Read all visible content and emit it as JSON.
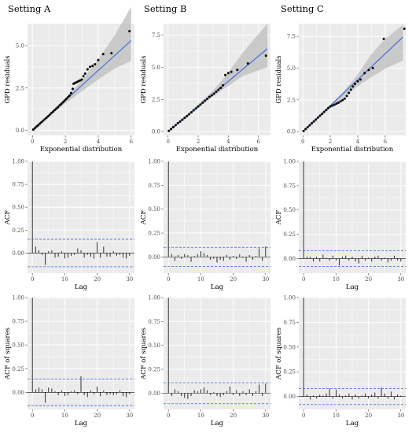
{
  "colors": {
    "panel_bg": "#EBEBEB",
    "grid": "#FFFFFF",
    "fit_line": "#3366DD",
    "band": "#BEBEBE",
    "bounds": "#3366DD",
    "points": "#000000",
    "bars": "#000000"
  },
  "chart_data": [
    {
      "type": "scatter",
      "id": "qq-A",
      "title": "Setting A",
      "xlabel": "Exponential distribution",
      "ylabel": "GPD residuals",
      "xlim": [
        -0.3,
        6.2
      ],
      "ylim": [
        -0.3,
        6.3
      ],
      "xticks": [
        0,
        2,
        4,
        6
      ],
      "yticks": [
        0.0,
        2.5,
        5.0
      ],
      "ytick_labels": [
        "0.0",
        "2.5",
        "5.0"
      ],
      "fit_line": [
        [
          0,
          0
        ],
        [
          6,
          5.3
        ]
      ],
      "band_upper": [
        [
          0,
          0.05
        ],
        [
          1,
          0.95
        ],
        [
          2,
          1.9
        ],
        [
          3,
          2.95
        ],
        [
          4,
          4.2
        ],
        [
          5,
          5.6
        ],
        [
          6,
          7.3
        ]
      ],
      "band_lower": [
        [
          0,
          -0.05
        ],
        [
          1,
          0.8
        ],
        [
          2,
          1.6
        ],
        [
          3,
          2.3
        ],
        [
          4,
          3.0
        ],
        [
          5,
          3.65
        ],
        [
          6,
          4.1
        ]
      ],
      "points": [
        [
          0.05,
          0.04
        ],
        [
          0.15,
          0.13
        ],
        [
          0.25,
          0.22
        ],
        [
          0.35,
          0.3
        ],
        [
          0.45,
          0.4
        ],
        [
          0.55,
          0.48
        ],
        [
          0.65,
          0.57
        ],
        [
          0.75,
          0.66
        ],
        [
          0.85,
          0.74
        ],
        [
          0.95,
          0.83
        ],
        [
          1.05,
          0.92
        ],
        [
          1.15,
          1.02
        ],
        [
          1.25,
          1.1
        ],
        [
          1.35,
          1.2
        ],
        [
          1.45,
          1.28
        ],
        [
          1.55,
          1.37
        ],
        [
          1.65,
          1.47
        ],
        [
          1.75,
          1.56
        ],
        [
          1.85,
          1.65
        ],
        [
          1.95,
          1.75
        ],
        [
          2.05,
          1.85
        ],
        [
          2.15,
          1.95
        ],
        [
          2.25,
          2.05
        ],
        [
          2.35,
          2.2
        ],
        [
          2.45,
          2.45
        ],
        [
          2.5,
          2.75
        ],
        [
          2.6,
          2.8
        ],
        [
          2.7,
          2.85
        ],
        [
          2.8,
          2.9
        ],
        [
          2.9,
          2.95
        ],
        [
          3.0,
          3.0
        ],
        [
          3.1,
          3.2
        ],
        [
          3.2,
          3.35
        ],
        [
          3.35,
          3.6
        ],
        [
          3.5,
          3.75
        ],
        [
          3.65,
          3.8
        ],
        [
          3.8,
          3.9
        ],
        [
          4.0,
          4.15
        ],
        [
          4.3,
          4.5
        ],
        [
          4.8,
          4.55
        ],
        [
          5.9,
          5.85
        ]
      ]
    },
    {
      "type": "scatter",
      "id": "qq-B",
      "title": "Setting B",
      "xlabel": "Exponential distribution",
      "ylabel": "GPD residuals",
      "xlim": [
        -0.3,
        6.8
      ],
      "ylim": [
        -0.3,
        8.4
      ],
      "xticks": [
        0,
        2,
        4,
        6
      ],
      "yticks": [
        0.0,
        2.5,
        5.0,
        7.5
      ],
      "ytick_labels": [
        "0.0",
        "2.5",
        "5.0",
        "7.5"
      ],
      "fit_line": [
        [
          0,
          0
        ],
        [
          6.6,
          6.45
        ]
      ],
      "band_upper": [
        [
          0,
          0.05
        ],
        [
          1,
          1.05
        ],
        [
          2,
          2.1
        ],
        [
          3,
          3.2
        ],
        [
          4,
          4.6
        ],
        [
          5,
          6.2
        ],
        [
          6.6,
          8.4
        ]
      ],
      "band_lower": [
        [
          0,
          -0.05
        ],
        [
          1,
          0.9
        ],
        [
          2,
          1.85
        ],
        [
          3,
          2.75
        ],
        [
          4,
          3.55
        ],
        [
          5,
          4.35
        ],
        [
          6.6,
          5.0
        ]
      ],
      "points": [
        [
          0.05,
          0.05
        ],
        [
          0.2,
          0.2
        ],
        [
          0.35,
          0.35
        ],
        [
          0.5,
          0.5
        ],
        [
          0.65,
          0.65
        ],
        [
          0.8,
          0.78
        ],
        [
          0.95,
          0.92
        ],
        [
          1.1,
          1.06
        ],
        [
          1.25,
          1.2
        ],
        [
          1.4,
          1.35
        ],
        [
          1.55,
          1.5
        ],
        [
          1.7,
          1.65
        ],
        [
          1.85,
          1.8
        ],
        [
          2.0,
          1.95
        ],
        [
          2.15,
          2.1
        ],
        [
          2.3,
          2.25
        ],
        [
          2.45,
          2.4
        ],
        [
          2.6,
          2.55
        ],
        [
          2.75,
          2.7
        ],
        [
          2.9,
          2.82
        ],
        [
          3.05,
          2.95
        ],
        [
          3.2,
          3.1
        ],
        [
          3.35,
          3.25
        ],
        [
          3.5,
          3.4
        ],
        [
          3.65,
          3.6
        ],
        [
          3.8,
          4.4
        ],
        [
          4.0,
          4.55
        ],
        [
          4.2,
          4.65
        ],
        [
          4.6,
          4.8
        ],
        [
          5.3,
          5.3
        ],
        [
          6.5,
          5.9
        ]
      ]
    },
    {
      "type": "scatter",
      "id": "qq-C",
      "title": "Setting C",
      "xlabel": "Exponential distribution",
      "ylabel": "GPD residuals",
      "xlim": [
        -0.3,
        7.5
      ],
      "ylim": [
        -0.3,
        8.5
      ],
      "xticks": [
        0,
        2,
        4,
        6
      ],
      "yticks": [
        0.0,
        2.5,
        5.0,
        7.5
      ],
      "ytick_labels": [
        "0.0",
        "2.5",
        "5.0",
        "7.5"
      ],
      "fit_line": [
        [
          0,
          0
        ],
        [
          7.3,
          7.45
        ]
      ],
      "band_upper": [
        [
          0,
          0.05
        ],
        [
          1,
          1.05
        ],
        [
          2,
          2.1
        ],
        [
          3,
          3.2
        ],
        [
          4,
          4.5
        ],
        [
          5,
          6.1
        ],
        [
          6,
          7.3
        ],
        [
          7.3,
          8.4
        ]
      ],
      "band_lower": [
        [
          0,
          -0.05
        ],
        [
          1,
          0.9
        ],
        [
          2,
          1.85
        ],
        [
          3,
          2.75
        ],
        [
          4,
          3.55
        ],
        [
          5,
          4.3
        ],
        [
          6,
          4.95
        ],
        [
          7.3,
          5.6
        ]
      ],
      "points": [
        [
          0.05,
          0.05
        ],
        [
          0.2,
          0.2
        ],
        [
          0.35,
          0.35
        ],
        [
          0.5,
          0.5
        ],
        [
          0.65,
          0.66
        ],
        [
          0.8,
          0.8
        ],
        [
          0.95,
          0.95
        ],
        [
          1.1,
          1.1
        ],
        [
          1.25,
          1.26
        ],
        [
          1.4,
          1.4
        ],
        [
          1.55,
          1.55
        ],
        [
          1.7,
          1.7
        ],
        [
          1.85,
          1.85
        ],
        [
          2.0,
          1.98
        ],
        [
          2.15,
          2.05
        ],
        [
          2.3,
          2.12
        ],
        [
          2.45,
          2.2
        ],
        [
          2.6,
          2.28
        ],
        [
          2.75,
          2.38
        ],
        [
          2.9,
          2.48
        ],
        [
          3.05,
          2.6
        ],
        [
          3.2,
          2.8
        ],
        [
          3.35,
          3.05
        ],
        [
          3.5,
          3.3
        ],
        [
          3.65,
          3.55
        ],
        [
          3.8,
          3.75
        ],
        [
          4.0,
          3.95
        ],
        [
          4.2,
          4.1
        ],
        [
          4.5,
          4.6
        ],
        [
          4.8,
          4.85
        ],
        [
          5.1,
          5.0
        ],
        [
          5.9,
          7.3
        ],
        [
          7.4,
          8.1
        ]
      ]
    },
    {
      "type": "bar",
      "id": "acf-A",
      "xlabel": "Lag",
      "ylabel": "ACF",
      "xlim": [
        -1.5,
        31.5
      ],
      "ylim": [
        -0.22,
        1.0
      ],
      "xticks": [
        0,
        10,
        20,
        30
      ],
      "yticks": [
        0.0,
        0.25,
        0.5,
        0.75,
        1.0
      ],
      "ytick_labels": [
        "0.00",
        "0.25",
        "0.50",
        "0.75",
        "1.00"
      ],
      "bound": 0.15,
      "lags": [
        0,
        1,
        2,
        3,
        4,
        5,
        6,
        7,
        8,
        9,
        10,
        11,
        12,
        13,
        14,
        15,
        16,
        17,
        18,
        19,
        20,
        21,
        22,
        23,
        24,
        25,
        26,
        27,
        28,
        29,
        30
      ],
      "values": [
        1.0,
        0.07,
        0.03,
        -0.02,
        -0.13,
        0.02,
        0.03,
        -0.05,
        -0.04,
        0.02,
        -0.06,
        -0.05,
        -0.03,
        -0.02,
        0.05,
        0.03,
        -0.05,
        -0.02,
        -0.04,
        -0.06,
        0.12,
        -0.05,
        0.07,
        -0.04,
        -0.04,
        0.02,
        -0.03,
        -0.02,
        -0.05,
        -0.06,
        -0.03
      ]
    },
    {
      "type": "bar",
      "id": "acf-B",
      "xlabel": "Lag",
      "ylabel": "ACF",
      "xlim": [
        -1.5,
        31.5
      ],
      "ylim": [
        -0.17,
        1.0
      ],
      "xticks": [
        0,
        10,
        20,
        30
      ],
      "yticks": [
        0.0,
        0.25,
        0.5,
        0.75,
        1.0
      ],
      "ytick_labels": [
        "0.00",
        "0.25",
        "0.50",
        "0.75",
        "1.00"
      ],
      "bound": 0.1,
      "lags": [
        0,
        1,
        2,
        3,
        4,
        5,
        6,
        7,
        8,
        9,
        10,
        11,
        12,
        13,
        14,
        15,
        16,
        17,
        18,
        19,
        20,
        21,
        22,
        23,
        24,
        25,
        26,
        27,
        28,
        29,
        30
      ],
      "values": [
        1.0,
        0.03,
        -0.04,
        0.02,
        -0.02,
        0.03,
        0.02,
        -0.05,
        0.01,
        0.03,
        0.06,
        0.04,
        0.02,
        -0.03,
        -0.02,
        -0.06,
        -0.03,
        -0.04,
        0.02,
        -0.03,
        0.01,
        -0.02,
        0.03,
        -0.01,
        -0.05,
        0.02,
        -0.03,
        0.01,
        0.09,
        -0.04,
        0.11
      ]
    },
    {
      "type": "bar",
      "id": "acf-C",
      "xlabel": "Lag",
      "ylabel": "ACF",
      "xlim": [
        -1.5,
        31.5
      ],
      "ylim": [
        -0.15,
        1.0
      ],
      "xticks": [
        0,
        10,
        20,
        30
      ],
      "yticks": [
        0.0,
        0.25,
        0.5,
        0.75,
        1.0
      ],
      "ytick_labels": [
        "0.00",
        "0.25",
        "0.50",
        "0.75",
        "1.00"
      ],
      "bound": 0.08,
      "lags": [
        0,
        1,
        2,
        3,
        4,
        5,
        6,
        7,
        8,
        9,
        10,
        11,
        12,
        13,
        14,
        15,
        16,
        17,
        18,
        19,
        20,
        21,
        22,
        23,
        24,
        25,
        26,
        27,
        28,
        29,
        30
      ],
      "values": [
        1.0,
        0.02,
        0.02,
        -0.03,
        0.02,
        -0.03,
        0.04,
        0.01,
        -0.02,
        0.03,
        -0.02,
        -0.07,
        0.02,
        0.03,
        -0.02,
        0.02,
        -0.03,
        -0.05,
        0.03,
        -0.02,
        0.01,
        -0.03,
        0.02,
        0.03,
        -0.02,
        0.01,
        -0.04,
        -0.02,
        0.03,
        -0.02,
        -0.03
      ]
    },
    {
      "type": "bar",
      "id": "acfsq-A",
      "xlabel": "Lag",
      "ylabel": "ACF of squares",
      "xlim": [
        -1.5,
        31.5
      ],
      "ylim": [
        -0.18,
        1.0
      ],
      "xticks": [
        0,
        10,
        20,
        30
      ],
      "yticks": [
        0.0,
        0.25,
        0.5,
        0.75,
        1.0
      ],
      "ytick_labels": [
        "0.00",
        "0.25",
        "0.50",
        "0.75",
        "1.00"
      ],
      "bound": 0.14,
      "lags": [
        0,
        1,
        2,
        3,
        4,
        5,
        6,
        7,
        8,
        9,
        10,
        11,
        12,
        13,
        14,
        15,
        16,
        17,
        18,
        19,
        20,
        21,
        22,
        23,
        24,
        25,
        26,
        27,
        28,
        29,
        30
      ],
      "values": [
        1.0,
        0.03,
        0.05,
        0.03,
        -0.11,
        0.05,
        0.04,
        0.01,
        -0.03,
        0.02,
        -0.04,
        -0.03,
        0.01,
        0.02,
        -0.02,
        0.17,
        -0.03,
        -0.05,
        0.02,
        -0.02,
        0.06,
        -0.04,
        0.02,
        -0.03,
        -0.02,
        -0.03,
        -0.02,
        0.02,
        -0.04,
        -0.05,
        -0.02
      ]
    },
    {
      "type": "bar",
      "id": "acfsq-B",
      "xlabel": "Lag",
      "ylabel": "ACF of squares",
      "xlim": [
        -1.5,
        31.5
      ],
      "ylim": [
        -0.17,
        1.0
      ],
      "xticks": [
        0,
        10,
        20,
        30
      ],
      "yticks": [
        0.0,
        0.25,
        0.5,
        0.75,
        1.0
      ],
      "ytick_labels": [
        "0.00",
        "0.25",
        "0.50",
        "0.75",
        "1.00"
      ],
      "bound": 0.11,
      "lags": [
        0,
        1,
        2,
        3,
        4,
        5,
        6,
        7,
        8,
        9,
        10,
        11,
        12,
        13,
        14,
        15,
        16,
        17,
        18,
        19,
        20,
        21,
        22,
        23,
        24,
        25,
        26,
        27,
        28,
        29,
        30
      ],
      "values": [
        1.0,
        -0.03,
        0.04,
        0.02,
        -0.03,
        -0.05,
        -0.06,
        -0.03,
        0.03,
        0.02,
        0.04,
        0.06,
        0.03,
        -0.02,
        0.01,
        -0.03,
        -0.04,
        -0.02,
        0.02,
        0.07,
        -0.02,
        0.03,
        -0.03,
        0.02,
        -0.02,
        0.04,
        -0.03,
        0.02,
        0.09,
        -0.03,
        0.1
      ]
    },
    {
      "type": "bar",
      "id": "acfsq-C",
      "xlabel": "Lag",
      "ylabel": "ACF of squares",
      "xlim": [
        -1.5,
        31.5
      ],
      "ylim": [
        -0.13,
        1.0
      ],
      "xticks": [
        0,
        10,
        20,
        30
      ],
      "yticks": [
        0.0,
        0.25,
        0.5,
        0.75,
        1.0
      ],
      "ytick_labels": [
        "0.00",
        "0.25",
        "0.50",
        "0.75",
        "1.00"
      ],
      "bound": 0.08,
      "lags": [
        0,
        1,
        2,
        3,
        4,
        5,
        6,
        7,
        8,
        9,
        10,
        11,
        12,
        13,
        14,
        15,
        16,
        17,
        18,
        19,
        20,
        21,
        22,
        23,
        24,
        25,
        26,
        27,
        28,
        29,
        30
      ],
      "values": [
        1.0,
        0.02,
        -0.03,
        0.01,
        -0.02,
        0.02,
        0.01,
        0.03,
        0.08,
        -0.02,
        0.07,
        0.02,
        -0.02,
        0.01,
        0.03,
        -0.03,
        0.02,
        -0.02,
        0.01,
        0.03,
        -0.02,
        0.02,
        0.04,
        -0.02,
        0.09,
        0.03,
        -0.02,
        0.05,
        -0.03,
        0.02,
        0.01
      ]
    }
  ]
}
